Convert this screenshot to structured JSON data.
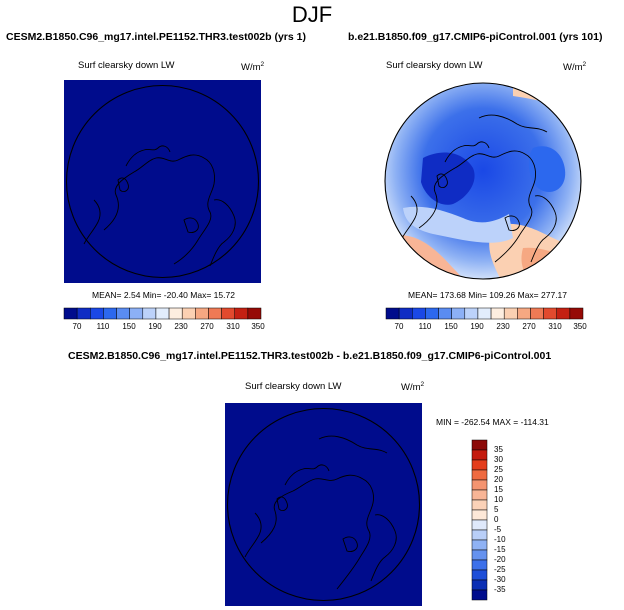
{
  "season": "DJF",
  "panels": {
    "left": {
      "title": "CESM2.B1850.C96_mg17.intel.PE1152.THR3.test002b (yrs 1)",
      "variable": "Surf clearsky down LW",
      "units": "W/m",
      "units_sup": "2",
      "stats": "MEAN=  2.54  Min= -20.40  Max=  15.72"
    },
    "right": {
      "title": "b.e21.B1850.f09_g17.CMIP6-piControl.001 (yrs 101)",
      "variable": "Surf clearsky down LW",
      "units": "W/m",
      "units_sup": "2",
      "stats": "MEAN= 173.68  Min= 109.26  Max= 277.17"
    },
    "diff": {
      "title": "CESM2.B1850.C96_mg17.intel.PE1152.THR3.test002b - b.e21.B1850.f09_g17.CMIP6-piControl.001",
      "variable": "Surf clearsky down LW",
      "units": "W/m",
      "units_sup": "2",
      "stats": "MIN = -262.54 MAX = -114.31"
    }
  },
  "colorbar_top": {
    "labels": [
      "70",
      "110",
      "150",
      "190",
      "230",
      "270",
      "310",
      "350"
    ],
    "colors": [
      "#000c8c",
      "#0f2cc4",
      "#1a48e6",
      "#2c68ee",
      "#5a8cf2",
      "#8cb0f6",
      "#bcd2fa",
      "#e2edfc",
      "#fdeee0",
      "#fbd0b2",
      "#f6a882",
      "#ef7a55",
      "#e24a2e",
      "#c42012",
      "#960a06"
    ]
  },
  "colorbar_diff": {
    "labels": [
      "35",
      "30",
      "25",
      "20",
      "15",
      "10",
      "5",
      "0",
      "-5",
      "-10",
      "-15",
      "-20",
      "-25",
      "-30",
      "-35"
    ],
    "colors": [
      "#8c0a08",
      "#c41a0e",
      "#e43d1c",
      "#ef6a40",
      "#f49470",
      "#f8b596",
      "#fbd2b8",
      "#fde8d8",
      "#dfe9fb",
      "#b9cff8",
      "#8fb2f4",
      "#6592ef",
      "#3c70ea",
      "#1d4ed8",
      "#0b2fb4",
      "#000c8c"
    ]
  },
  "map_colors": {
    "uniform": "#000c8c",
    "outline": "#000000"
  }
}
